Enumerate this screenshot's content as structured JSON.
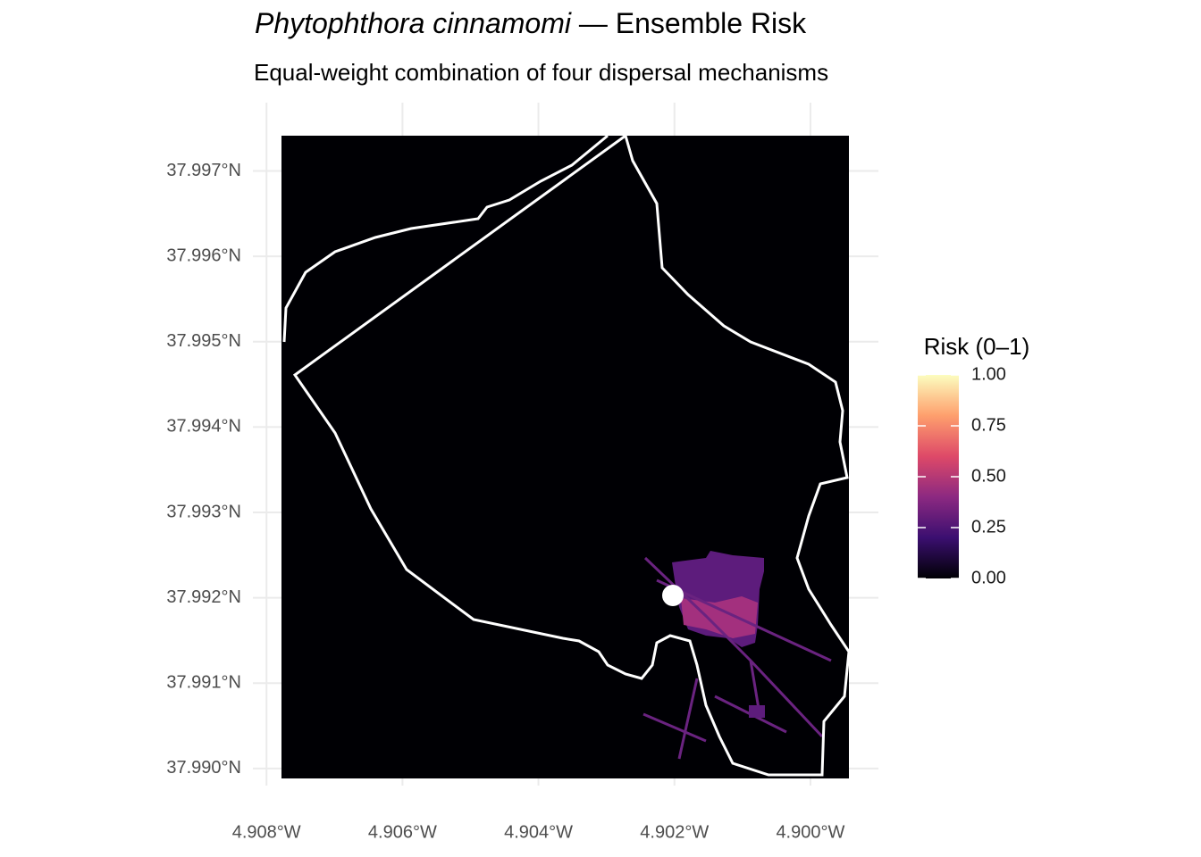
{
  "chart_data": {
    "type": "map",
    "title": {
      "species": "Phytophthora cinnamomi",
      "rest": " — Ensemble Risk"
    },
    "subtitle": "Equal-weight combination of four dispersal mechanisms",
    "xlim": [
      -4.9082,
      -4.899
    ],
    "ylim": [
      37.9898,
      37.9978
    ],
    "xticks": [
      {
        "value": -4.908,
        "label": "4.908°W"
      },
      {
        "value": -4.906,
        "label": "4.906°W"
      },
      {
        "value": -4.904,
        "label": "4.904°W"
      },
      {
        "value": -4.902,
        "label": "4.902°W"
      },
      {
        "value": -4.9,
        "label": "4.900°W"
      }
    ],
    "yticks": [
      {
        "value": 37.99,
        "label": "37.990°N"
      },
      {
        "value": 37.991,
        "label": "37.991°N"
      },
      {
        "value": 37.992,
        "label": "37.992°N"
      },
      {
        "value": 37.993,
        "label": "37.993°N"
      },
      {
        "value": 37.994,
        "label": "37.994°N"
      },
      {
        "value": 37.995,
        "label": "37.995°N"
      },
      {
        "value": 37.996,
        "label": "37.996°N"
      },
      {
        "value": 37.997,
        "label": "37.997°N"
      }
    ],
    "grid": true,
    "legend": {
      "title": "Risk (0–1)",
      "lim": [
        0,
        1
      ],
      "ticks": [
        {
          "value": 0,
          "label": "0.00"
        },
        {
          "value": 0.25,
          "label": "0.25"
        },
        {
          "value": 0.5,
          "label": "0.50"
        },
        {
          "value": 0.75,
          "label": "0.75"
        },
        {
          "value": 1,
          "label": "1.00"
        }
      ],
      "colors": [
        "#000004",
        "#3b0f70",
        "#8c2981",
        "#de4968",
        "#fe9f6d",
        "#fcfdbf"
      ]
    }
  }
}
